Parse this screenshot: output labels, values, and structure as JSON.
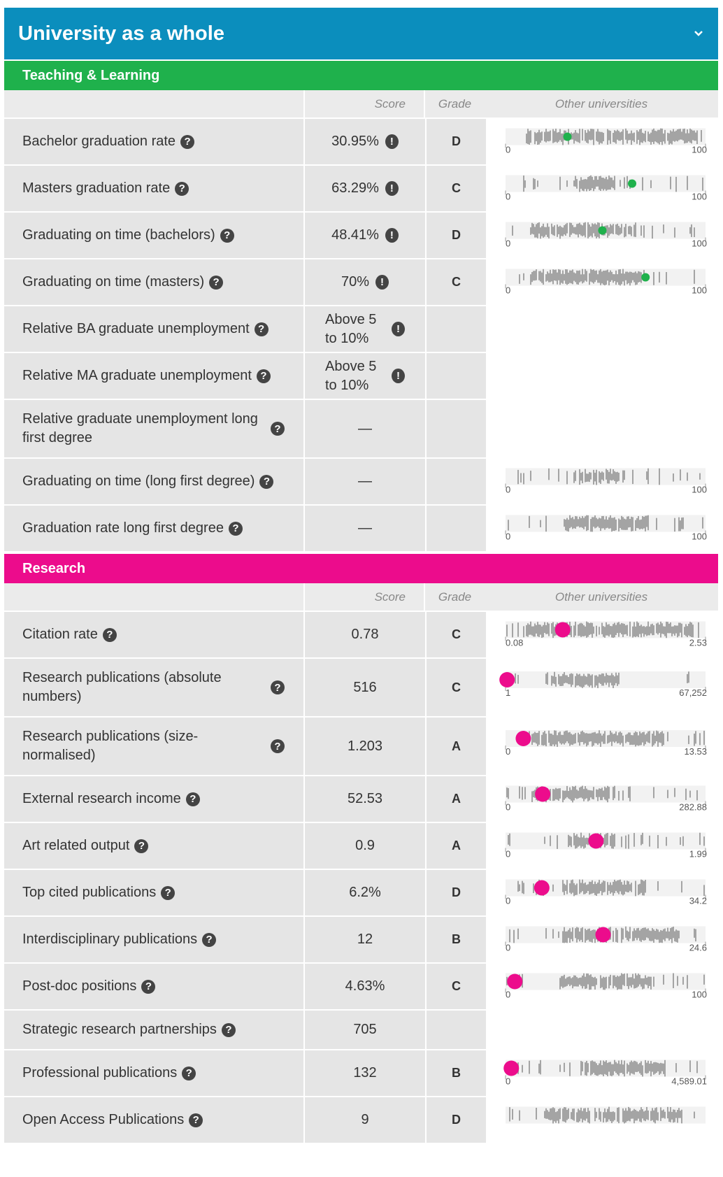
{
  "header": {
    "title": "University as a whole"
  },
  "sections": [
    {
      "title": "Teaching & Learning",
      "color": "#1fb14c",
      "dot_radius": 6,
      "columns": [
        "Score",
        "Grade",
        "Other universities"
      ],
      "rows": [
        {
          "label": "Bachelor graduation rate",
          "score": "30.95%",
          "warning": true,
          "grade": "D",
          "distribution": true,
          "axis": [
            0,
            100
          ],
          "marker": 30.95
        },
        {
          "label": "Masters graduation rate",
          "score": "63.29%",
          "warning": true,
          "grade": "C",
          "distribution": true,
          "axis": [
            0,
            100
          ],
          "marker": 63.29
        },
        {
          "label": "Graduating on time (bachelors)",
          "score": "48.41%",
          "warning": true,
          "grade": "D",
          "distribution": true,
          "axis": [
            0,
            100
          ],
          "marker": 48.41
        },
        {
          "label": "Graduating on time (masters)",
          "score": "70%",
          "warning": true,
          "grade": "C",
          "distribution": true,
          "axis": [
            0,
            100
          ],
          "marker": 70
        },
        {
          "label": "Relative BA graduate unemployment",
          "score": "Above 5 to 10%",
          "warning": true
        },
        {
          "label": "Relative MA graduate unemployment",
          "score": "Above 5 to 10%",
          "warning": true
        },
        {
          "label": "Relative graduate unemployment long first degree",
          "score": "—"
        },
        {
          "label": "Graduating on time (long first degree)",
          "score": "—",
          "distribution": true,
          "axis": [
            0,
            100
          ]
        },
        {
          "label": "Graduation rate long first degree",
          "score": "—",
          "distribution": true,
          "axis": [
            0,
            100
          ]
        }
      ]
    },
    {
      "title": "Research",
      "color": "#ec0c8c",
      "dot_radius": 11,
      "columns": [
        "Score",
        "Grade",
        "Other universities"
      ],
      "rows": [
        {
          "label": "Citation rate",
          "score": "0.78",
          "grade": "C",
          "distribution": true,
          "axis": [
            0.08,
            2.53
          ],
          "marker": 0.78
        },
        {
          "label": "Research publications (absolute numbers)",
          "score": "516",
          "grade": "C",
          "distribution": true,
          "axis": [
            1,
            {
              "value": 67252,
              "label": "67,252"
            }
          ],
          "marker": 516
        },
        {
          "label": "Research publications (size-normalised)",
          "score": "1.203",
          "grade": "A",
          "distribution": true,
          "axis": [
            0,
            13.53
          ],
          "marker": 1.203
        },
        {
          "label": "External research income",
          "score": "52.53",
          "grade": "A",
          "distribution": true,
          "axis": [
            0,
            282.88
          ],
          "marker": 52.53
        },
        {
          "label": "Art related output",
          "score": "0.9",
          "grade": "A",
          "distribution": true,
          "axis": [
            0,
            1.99
          ],
          "marker": 0.9
        },
        {
          "label": "Top cited publications",
          "score": "6.2%",
          "grade": "D",
          "distribution": true,
          "axis": [
            0,
            34.2
          ],
          "marker": 6.2
        },
        {
          "label": "Interdisciplinary publications",
          "score": "12",
          "grade": "B",
          "distribution": true,
          "axis": [
            0,
            24.6
          ],
          "marker": 12
        },
        {
          "label": "Post-doc positions",
          "score": "4.63%",
          "grade": "C",
          "distribution": true,
          "axis": [
            0,
            100
          ],
          "marker": 4.63
        },
        {
          "label": "Strategic research partnerships",
          "score": "705"
        },
        {
          "label": "Professional publications",
          "score": "132",
          "grade": "B",
          "distribution": true,
          "axis": [
            0,
            {
              "value": 4589.01,
              "label": "4,589.01"
            }
          ],
          "marker": 132
        },
        {
          "label": "Open Access Publications",
          "score": "9",
          "grade": "D",
          "distribution": true
        }
      ]
    }
  ]
}
